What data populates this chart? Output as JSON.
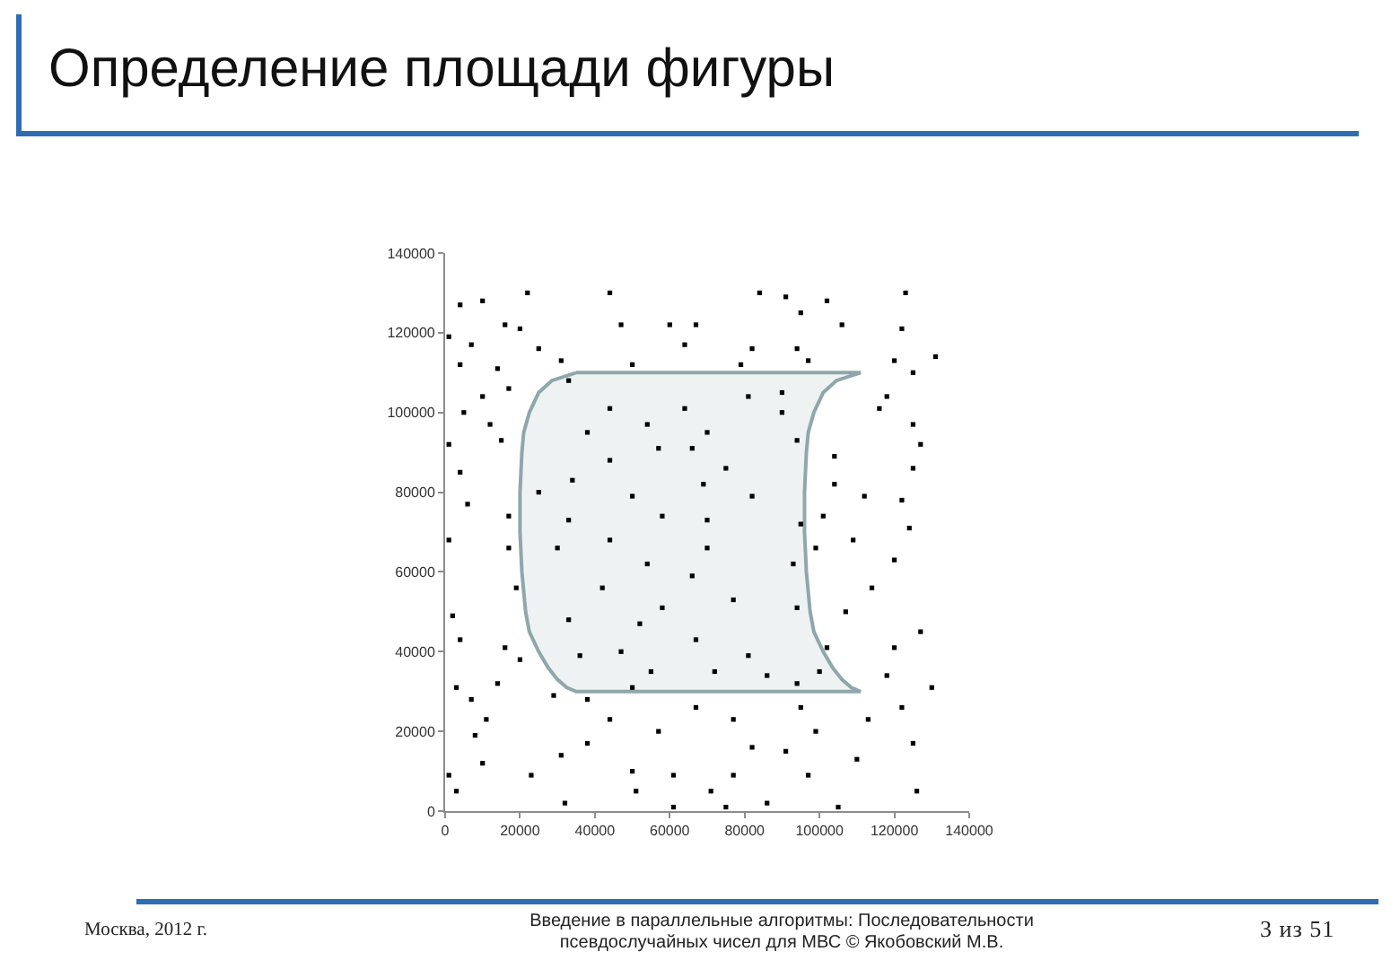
{
  "chart_data": {
    "type": "scatter",
    "title": "Определение площади фигуры",
    "annotations": [
      "Москва, 2012 г.",
      "Введение в параллельные алгоритмы: Последовательности псевдослучайных чисел для МВС © Якобовский М.В.",
      "3 из 51"
    ],
    "xlim": [
      0,
      140000
    ],
    "ylim": [
      0,
      140000
    ],
    "xticks": [
      0,
      20000,
      40000,
      60000,
      80000,
      100000,
      120000,
      140000
    ],
    "yticks": [
      0,
      20000,
      40000,
      60000,
      80000,
      100000,
      120000,
      140000
    ],
    "series": [
      {
        "type": "area",
        "color": "#8fa7ab",
        "x": [
          35000,
          111000,
          104500,
          101000,
          98500,
          97000,
          96500,
          96000,
          96000,
          96500,
          97500,
          98500,
          101000,
          103500,
          106000,
          108500,
          111000,
          35000,
          32500,
          30000,
          27500,
          25000,
          22500,
          21500,
          20500,
          20000,
          20000,
          20500,
          21000,
          22500,
          25000,
          28500,
          35000
        ],
        "values": [
          110000,
          110000,
          108000,
          105000,
          100000,
          95000,
          90000,
          80000,
          70000,
          60000,
          50000,
          45000,
          40000,
          36000,
          33000,
          31000,
          30000,
          30000,
          31000,
          33000,
          36000,
          40000,
          45000,
          50000,
          60000,
          70000,
          80000,
          90000,
          95000,
          100000,
          105000,
          108000,
          110000
        ]
      },
      {
        "color": "#000000",
        "marker": "square",
        "x": [
          4000,
          10000,
          22000,
          16000,
          1000,
          7000,
          20000,
          25000,
          31000,
          4000,
          14000,
          10000,
          17000,
          5000,
          12000,
          1000,
          15000,
          4000,
          6000,
          17000,
          33000,
          50000,
          44000,
          54000,
          38000,
          34000,
          44000,
          57000,
          25000,
          50000,
          33000,
          58000,
          47000,
          44000,
          60000,
          84000,
          91000,
          102000,
          123000,
          67000,
          95000,
          106000,
          122000,
          64000,
          82000,
          94000,
          131000,
          79000,
          97000,
          120000,
          125000,
          118000,
          116000,
          125000,
          127000,
          104000,
          125000,
          104000,
          112000,
          122000,
          101000,
          124000,
          64000,
          81000,
          90000,
          70000,
          90000,
          66000,
          75000,
          94000,
          69000,
          82000,
          70000,
          95000,
          1000,
          17000,
          19000,
          2000,
          4000,
          16000,
          20000,
          3000,
          14000,
          7000,
          29000,
          38000,
          44000,
          11000,
          8000,
          38000,
          57000,
          31000,
          1000,
          10000,
          23000,
          50000,
          61000,
          3000,
          32000,
          51000,
          61000,
          30000,
          44000,
          54000,
          42000,
          33000,
          52000,
          58000,
          36000,
          47000,
          55000,
          50000,
          70000,
          93000,
          66000,
          77000,
          67000,
          81000,
          94000,
          72000,
          86000,
          94000,
          99000,
          109000,
          120000,
          114000,
          107000,
          127000,
          102000,
          120000,
          130000,
          118000,
          100000,
          67000,
          77000,
          95000,
          99000,
          113000,
          122000,
          125000,
          82000,
          91000,
          110000,
          77000,
          97000,
          126000,
          71000,
          86000,
          105000,
          75000
        ],
        "values": [
          127000,
          128000,
          130000,
          122000,
          119000,
          117000,
          121000,
          116000,
          113000,
          112000,
          111000,
          104000,
          106000,
          100000,
          97000,
          92000,
          93000,
          85000,
          77000,
          74000,
          108000,
          112000,
          101000,
          97000,
          95000,
          83000,
          88000,
          91000,
          80000,
          79000,
          73000,
          74000,
          122000,
          130000,
          122000,
          130000,
          129000,
          128000,
          130000,
          122000,
          125000,
          122000,
          121000,
          117000,
          116000,
          116000,
          114000,
          112000,
          113000,
          113000,
          110000,
          104000,
          101000,
          97000,
          92000,
          89000,
          86000,
          82000,
          79000,
          78000,
          74000,
          71000,
          101000,
          104000,
          105000,
          95000,
          100000,
          91000,
          86000,
          93000,
          82000,
          79000,
          73000,
          72000,
          68000,
          66000,
          56000,
          49000,
          43000,
          41000,
          38000,
          31000,
          32000,
          28000,
          29000,
          28000,
          23000,
          23000,
          19000,
          17000,
          20000,
          14000,
          9000,
          12000,
          9000,
          10000,
          9000,
          5000,
          2000,
          5000,
          1000,
          66000,
          68000,
          62000,
          56000,
          48000,
          47000,
          51000,
          39000,
          40000,
          35000,
          31000,
          66000,
          62000,
          59000,
          53000,
          43000,
          39000,
          51000,
          35000,
          34000,
          32000,
          66000,
          68000,
          63000,
          56000,
          50000,
          45000,
          41000,
          41000,
          31000,
          34000,
          35000,
          26000,
          23000,
          26000,
          20000,
          23000,
          26000,
          17000,
          16000,
          15000,
          13000,
          9000,
          9000,
          5000,
          5000,
          2000,
          1000,
          1000
        ]
      }
    ]
  }
}
